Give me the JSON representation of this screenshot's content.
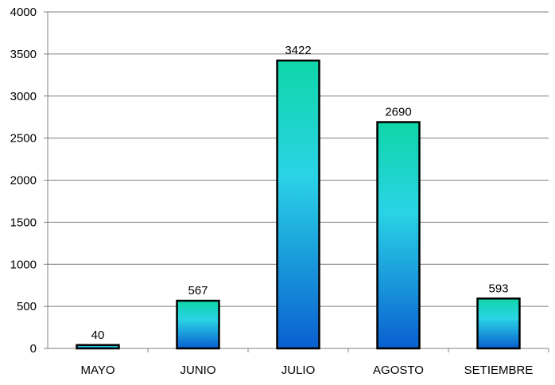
{
  "chart_data": {
    "type": "bar",
    "categories": [
      "MAYO",
      "JUNIO",
      "JULIO",
      "AGOSTO",
      "SETIEMBRE"
    ],
    "values": [
      40,
      567,
      3422,
      2690,
      593
    ],
    "ylim": [
      0,
      4000
    ],
    "yticks": [
      0,
      500,
      1000,
      1500,
      2000,
      2500,
      3000,
      3500,
      4000
    ],
    "grid": true,
    "data_labels": true,
    "legend": "none",
    "colors": {
      "bar_top": "#0fd6a8",
      "bar_mid": "#2ad3e6",
      "bar_bottom": "#0a5fd0",
      "bar_outline": "#000000",
      "gridline": "#808080",
      "axis": "#808080"
    }
  }
}
